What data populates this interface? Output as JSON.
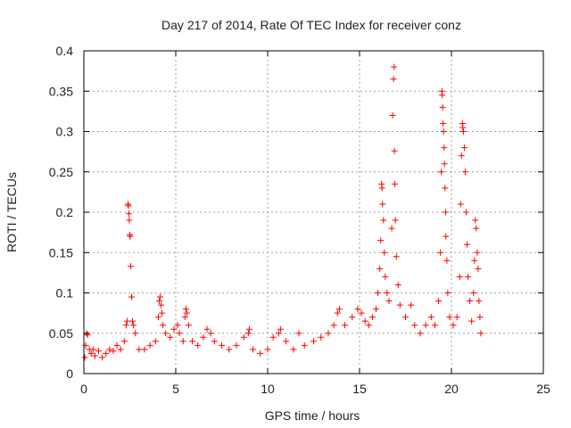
{
  "chart_data": {
    "type": "scatter",
    "title": "Day 217 of 2014, Rate Of TEC Index for receiver conz",
    "xlabel": "GPS time / hours",
    "ylabel": "ROTI / TECUs",
    "xlim": [
      0,
      25
    ],
    "ylim": [
      0,
      0.4
    ],
    "xticks": [
      0,
      5,
      10,
      15,
      20,
      25
    ],
    "xtick_labels": [
      "0",
      "5",
      "10",
      "15",
      "20",
      "25"
    ],
    "yticks": [
      0,
      0.05,
      0.1,
      0.15,
      0.2,
      0.25,
      0.3,
      0.35,
      0.4
    ],
    "ytick_labels": [
      "0",
      "0.05",
      "0.1",
      "0.15",
      "0.2",
      "0.25",
      "0.3",
      "0.35",
      "0.4"
    ],
    "grid": true,
    "marker": "plus",
    "series_color": "#ff0000",
    "series": [
      {
        "name": "ROTI",
        "points": [
          [
            0.05,
            0.02
          ],
          [
            0.1,
            0.035
          ],
          [
            0.15,
            0.05
          ],
          [
            0.2,
            0.048
          ],
          [
            0.3,
            0.03
          ],
          [
            0.4,
            0.025
          ],
          [
            0.5,
            0.03
          ],
          [
            0.6,
            0.022
          ],
          [
            0.8,
            0.028
          ],
          [
            1.0,
            0.02
          ],
          [
            1.2,
            0.025
          ],
          [
            1.4,
            0.03
          ],
          [
            1.6,
            0.028
          ],
          [
            1.8,
            0.035
          ],
          [
            2.0,
            0.03
          ],
          [
            2.2,
            0.04
          ],
          [
            2.3,
            0.06
          ],
          [
            2.35,
            0.065
          ],
          [
            2.4,
            0.21
          ],
          [
            2.42,
            0.208
          ],
          [
            2.45,
            0.198
          ],
          [
            2.47,
            0.19
          ],
          [
            2.5,
            0.172
          ],
          [
            2.52,
            0.17
          ],
          [
            2.55,
            0.133
          ],
          [
            2.6,
            0.095
          ],
          [
            2.65,
            0.065
          ],
          [
            2.7,
            0.06
          ],
          [
            2.8,
            0.05
          ],
          [
            3.0,
            0.03
          ],
          [
            3.3,
            0.03
          ],
          [
            3.6,
            0.035
          ],
          [
            3.9,
            0.04
          ],
          [
            4.05,
            0.07
          ],
          [
            4.1,
            0.09
          ],
          [
            4.15,
            0.095
          ],
          [
            4.2,
            0.085
          ],
          [
            4.25,
            0.075
          ],
          [
            4.3,
            0.06
          ],
          [
            4.45,
            0.05
          ],
          [
            4.7,
            0.045
          ],
          [
            4.9,
            0.055
          ],
          [
            5.1,
            0.06
          ],
          [
            5.2,
            0.05
          ],
          [
            5.4,
            0.04
          ],
          [
            5.5,
            0.07
          ],
          [
            5.55,
            0.08
          ],
          [
            5.6,
            0.075
          ],
          [
            5.7,
            0.06
          ],
          [
            5.9,
            0.04
          ],
          [
            6.2,
            0.035
          ],
          [
            6.5,
            0.045
          ],
          [
            6.7,
            0.055
          ],
          [
            6.9,
            0.05
          ],
          [
            7.1,
            0.04
          ],
          [
            7.5,
            0.035
          ],
          [
            7.9,
            0.03
          ],
          [
            8.3,
            0.035
          ],
          [
            8.7,
            0.045
          ],
          [
            8.95,
            0.05
          ],
          [
            9.0,
            0.055
          ],
          [
            9.2,
            0.03
          ],
          [
            9.6,
            0.025
          ],
          [
            10.0,
            0.03
          ],
          [
            10.3,
            0.045
          ],
          [
            10.6,
            0.05
          ],
          [
            10.7,
            0.055
          ],
          [
            11.0,
            0.04
          ],
          [
            11.4,
            0.03
          ],
          [
            11.7,
            0.05
          ],
          [
            12.0,
            0.035
          ],
          [
            12.5,
            0.04
          ],
          [
            12.9,
            0.045
          ],
          [
            13.3,
            0.05
          ],
          [
            13.6,
            0.06
          ],
          [
            13.8,
            0.075
          ],
          [
            13.9,
            0.08
          ],
          [
            14.2,
            0.06
          ],
          [
            14.6,
            0.07
          ],
          [
            14.9,
            0.08
          ],
          [
            15.1,
            0.075
          ],
          [
            15.3,
            0.065
          ],
          [
            15.5,
            0.06
          ],
          [
            15.7,
            0.07
          ],
          [
            15.9,
            0.08
          ],
          [
            16.0,
            0.1
          ],
          [
            16.1,
            0.13
          ],
          [
            16.15,
            0.165
          ],
          [
            16.2,
            0.235
          ],
          [
            16.22,
            0.23
          ],
          [
            16.25,
            0.21
          ],
          [
            16.3,
            0.19
          ],
          [
            16.35,
            0.15
          ],
          [
            16.4,
            0.12
          ],
          [
            16.5,
            0.1
          ],
          [
            16.6,
            0.09
          ],
          [
            16.75,
            0.18
          ],
          [
            16.8,
            0.32
          ],
          [
            16.85,
            0.365
          ],
          [
            16.88,
            0.38
          ],
          [
            16.9,
            0.276
          ],
          [
            16.92,
            0.235
          ],
          [
            16.95,
            0.19
          ],
          [
            17.0,
            0.145
          ],
          [
            17.1,
            0.11
          ],
          [
            17.2,
            0.085
          ],
          [
            17.5,
            0.07
          ],
          [
            17.8,
            0.085
          ],
          [
            18.0,
            0.06
          ],
          [
            18.3,
            0.05
          ],
          [
            18.6,
            0.06
          ],
          [
            18.9,
            0.07
          ],
          [
            19.1,
            0.06
          ],
          [
            19.3,
            0.09
          ],
          [
            19.4,
            0.15
          ],
          [
            19.45,
            0.25
          ],
          [
            19.48,
            0.35
          ],
          [
            19.5,
            0.345
          ],
          [
            19.52,
            0.33
          ],
          [
            19.55,
            0.31
          ],
          [
            19.57,
            0.3
          ],
          [
            19.6,
            0.28
          ],
          [
            19.62,
            0.26
          ],
          [
            19.65,
            0.23
          ],
          [
            19.68,
            0.2
          ],
          [
            19.7,
            0.17
          ],
          [
            19.75,
            0.14
          ],
          [
            19.8,
            0.1
          ],
          [
            19.9,
            0.07
          ],
          [
            20.1,
            0.06
          ],
          [
            20.3,
            0.07
          ],
          [
            20.45,
            0.12
          ],
          [
            20.5,
            0.21
          ],
          [
            20.55,
            0.27
          ],
          [
            20.6,
            0.31
          ],
          [
            20.62,
            0.305
          ],
          [
            20.65,
            0.3
          ],
          [
            20.7,
            0.28
          ],
          [
            20.75,
            0.25
          ],
          [
            20.8,
            0.2
          ],
          [
            20.85,
            0.16
          ],
          [
            20.9,
            0.12
          ],
          [
            21.0,
            0.09
          ],
          [
            21.1,
            0.065
          ],
          [
            21.2,
            0.1
          ],
          [
            21.25,
            0.14
          ],
          [
            21.3,
            0.19
          ],
          [
            21.35,
            0.18
          ],
          [
            21.4,
            0.15
          ],
          [
            21.45,
            0.13
          ],
          [
            21.5,
            0.09
          ],
          [
            21.55,
            0.07
          ],
          [
            21.6,
            0.05
          ]
        ]
      }
    ]
  }
}
